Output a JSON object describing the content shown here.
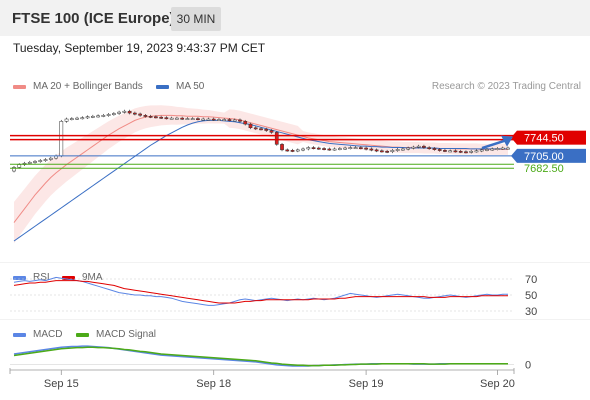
{
  "header": {
    "title": "FTSE 100 (ICE Europe)",
    "timeframe": "30 MIN",
    "datetime": "Tuesday, September 19, 2023 9:43:37 PM CET",
    "copyright": "Research © 2023 Trading Central"
  },
  "colors": {
    "bollinger": "#f08b86",
    "ma50": "#3a6fc4",
    "resistance": "#e00000",
    "support_blue": "#3a6fc4",
    "support_green": "#4caa18",
    "rsi": "#5b86e5",
    "rsi_9ma": "#e00000",
    "macd": "#5b86e5",
    "macd_signal": "#4caa18",
    "arrow": "#3a6fc4"
  },
  "chart_data": [
    {
      "type": "candlestick",
      "legend": [
        {
          "name": "MA 20 + Bollinger Bands",
          "color": "#f08b86"
        },
        {
          "name": "MA 50",
          "color": "#3a6fc4"
        }
      ],
      "levels": [
        {
          "label": "7744.50",
          "value": 7744.5,
          "color": "#e00000"
        },
        {
          "label": "7705.00",
          "value": 7705.0,
          "color": "#3a6fc4"
        },
        {
          "label": "7682.50",
          "value": 7682.5,
          "color": "#4caa18"
        }
      ],
      "x_ticks": [
        "Sep 15",
        "Sep 18",
        "Sep 19",
        "Sep 20"
      ],
      "y_range": [
        7520,
        7835
      ],
      "n_bars": 95,
      "close": [
        7680,
        7686,
        7689,
        7691,
        7693,
        7695,
        7697,
        7700,
        7705,
        7780,
        7785,
        7786,
        7787,
        7788,
        7790,
        7791,
        7792,
        7793,
        7795,
        7797,
        7800,
        7802,
        7798,
        7796,
        7793,
        7791,
        7790,
        7789,
        7788,
        7787,
        7787,
        7787,
        7786,
        7786,
        7786,
        7785,
        7785,
        7785,
        7784,
        7784,
        7784,
        7783,
        7783,
        7780,
        7774,
        7766,
        7764,
        7763,
        7760,
        7756,
        7730,
        7718,
        7717,
        7716,
        7718,
        7720,
        7723,
        7722,
        7721,
        7720,
        7719,
        7720,
        7721,
        7722,
        7723,
        7723,
        7722,
        7720,
        7718,
        7716,
        7715,
        7714,
        7717,
        7719,
        7720,
        7722,
        7724,
        7726,
        7723,
        7721,
        7719,
        7717,
        7716,
        7716,
        7715,
        7714,
        7713,
        7715,
        7716,
        7718,
        7719,
        7720,
        7721,
        7722,
        7722
      ],
      "ma20": [
        7560,
        7575,
        7590,
        7605,
        7620,
        7633,
        7646,
        7658,
        7668,
        7677,
        7686,
        7694,
        7702,
        7710,
        7718,
        7726,
        7734,
        7742,
        7750,
        7757,
        7764,
        7770,
        7776,
        7782,
        7786,
        7789,
        7791,
        7792,
        7793,
        7793,
        7793,
        7792,
        7792,
        7791,
        7791,
        7791,
        7790,
        7790,
        7789,
        7788,
        7787,
        7786,
        7785,
        7783,
        7780,
        7777,
        7774,
        7771,
        7768,
        7765,
        7762,
        7759,
        7756,
        7753,
        7750,
        7747,
        7744,
        7742,
        7740,
        7738,
        7736,
        7735,
        7734,
        7733,
        7732,
        7731,
        7730,
        7729,
        7728,
        7727,
        7726,
        7725,
        7724,
        7724,
        7723,
        7723,
        7723,
        7723,
        7722,
        7722,
        7722,
        7721,
        7721,
        7721,
        7720,
        7720,
        7720,
        7720,
        7720,
        7719,
        7719,
        7719,
        7719,
        7719,
        7719
      ],
      "ma50": [
        7520,
        7528,
        7536,
        7544,
        7552,
        7560,
        7568,
        7576,
        7584,
        7592,
        7600,
        7608,
        7616,
        7624,
        7632,
        7640,
        7648,
        7656,
        7664,
        7672,
        7680,
        7688,
        7696,
        7704,
        7712,
        7720,
        7728,
        7735,
        7742,
        7749,
        7755,
        7761,
        7767,
        7772,
        7776,
        7779,
        7781,
        7782,
        7782,
        7782,
        7781,
        7780,
        7779,
        7777,
        7775,
        7773,
        7770,
        7767,
        7764,
        7761,
        7758,
        7755,
        7752,
        7749,
        7746,
        7743,
        7740,
        7738,
        7736,
        7734,
        7732,
        7731,
        7730,
        7729,
        7728,
        7727,
        7726,
        7726,
        7725,
        7725,
        7724,
        7724,
        7723,
        7723,
        7723,
        7722,
        7722,
        7722,
        7722,
        7722,
        7722,
        7721,
        7721,
        7721,
        7721,
        7721,
        7721,
        7720,
        7720,
        7720,
        7720,
        7720,
        7720,
        7720,
        7720
      ]
    },
    {
      "type": "line",
      "legend": [
        {
          "name": "RSI",
          "color": "#5b86e5"
        },
        {
          "name": "9MA",
          "color": "#e00000"
        }
      ],
      "y_ticks": [
        "70",
        "50",
        "30"
      ],
      "y_range": [
        20,
        80
      ],
      "series": [
        {
          "name": "RSI",
          "values": [
            66,
            67,
            68,
            67,
            68,
            69,
            68,
            70,
            72,
            71,
            70,
            69,
            68,
            67,
            65,
            63,
            61,
            59,
            57,
            55,
            53,
            52,
            51,
            50,
            50,
            49,
            49,
            48,
            48,
            47,
            46,
            44,
            42,
            41,
            40,
            39,
            38,
            37,
            37,
            38,
            39,
            40,
            42,
            44,
            45,
            44,
            43,
            44,
            45,
            46,
            45,
            44,
            43,
            44,
            45,
            44,
            45,
            46,
            45,
            44,
            45,
            46,
            48,
            50,
            52,
            51,
            50,
            49,
            48,
            47,
            48,
            49,
            50,
            51,
            50,
            49,
            48,
            47,
            46,
            46,
            47,
            48,
            49,
            50,
            49,
            48,
            47,
            48,
            49,
            50,
            51,
            50,
            50,
            51,
            51
          ]
        },
        {
          "name": "9MA",
          "values": [
            62,
            63,
            64,
            65,
            65,
            66,
            66,
            67,
            68,
            68,
            68,
            68,
            68,
            67,
            67,
            66,
            65,
            64,
            63,
            62,
            60,
            58,
            57,
            56,
            55,
            54,
            53,
            52,
            51,
            50,
            49,
            48,
            47,
            46,
            45,
            44,
            43,
            42,
            41,
            40,
            40,
            40,
            40,
            41,
            42,
            42,
            43,
            43,
            44,
            44,
            44,
            44,
            44,
            44,
            44,
            44,
            44,
            45,
            45,
            45,
            45,
            45,
            46,
            46,
            47,
            48,
            48,
            48,
            48,
            48,
            48,
            48,
            48,
            48,
            48,
            48,
            48,
            48,
            48,
            47,
            47,
            47,
            47,
            48,
            48,
            48,
            48,
            48,
            48,
            49,
            49,
            49,
            49,
            49,
            49
          ]
        }
      ]
    },
    {
      "type": "line",
      "legend": [
        {
          "name": "MACD",
          "color": "#5b86e5"
        },
        {
          "name": "MACD Signal",
          "color": "#4caa18"
        }
      ],
      "y_ticks": [
        "0"
      ],
      "y_range": [
        -20,
        60
      ],
      "series": [
        {
          "name": "MACD",
          "values": [
            28,
            30,
            32,
            34,
            36,
            38,
            40,
            42,
            44,
            46,
            47,
            48,
            48,
            49,
            49,
            48,
            47,
            46,
            45,
            43,
            41,
            39,
            37,
            35,
            33,
            31,
            29,
            27,
            25,
            24,
            23,
            22,
            21,
            20,
            19,
            18,
            17,
            16,
            15,
            14,
            13,
            12,
            11,
            10,
            9,
            8,
            7,
            5,
            3,
            1,
            -1,
            -2,
            -3,
            -4,
            -4,
            -4,
            -4,
            -3,
            -3,
            -2,
            -2,
            -1,
            -1,
            0,
            0,
            1,
            1,
            1,
            2,
            2,
            2,
            2,
            2,
            2,
            2,
            2,
            1,
            1,
            1,
            1,
            1,
            2,
            2,
            2,
            2,
            2,
            2,
            2,
            2,
            2,
            2,
            2,
            2,
            2,
            2
          ]
        },
        {
          "name": "MACD Signal",
          "values": [
            24,
            26,
            28,
            30,
            32,
            34,
            36,
            38,
            40,
            42,
            43,
            44,
            45,
            45,
            46,
            46,
            45,
            45,
            44,
            43,
            42,
            40,
            39,
            37,
            35,
            34,
            32,
            30,
            28,
            27,
            26,
            25,
            24,
            23,
            22,
            21,
            20,
            19,
            18,
            17,
            16,
            15,
            14,
            13,
            12,
            11,
            10,
            8,
            6,
            4,
            3,
            1,
            0,
            -1,
            -2,
            -2,
            -3,
            -3,
            -3,
            -2,
            -2,
            -2,
            -1,
            -1,
            0,
            0,
            1,
            1,
            1,
            1,
            2,
            2,
            2,
            2,
            2,
            2,
            2,
            2,
            2,
            1,
            1,
            1,
            1,
            2,
            2,
            2,
            2,
            2,
            2,
            2,
            2,
            2,
            2,
            2,
            2
          ]
        }
      ]
    }
  ]
}
